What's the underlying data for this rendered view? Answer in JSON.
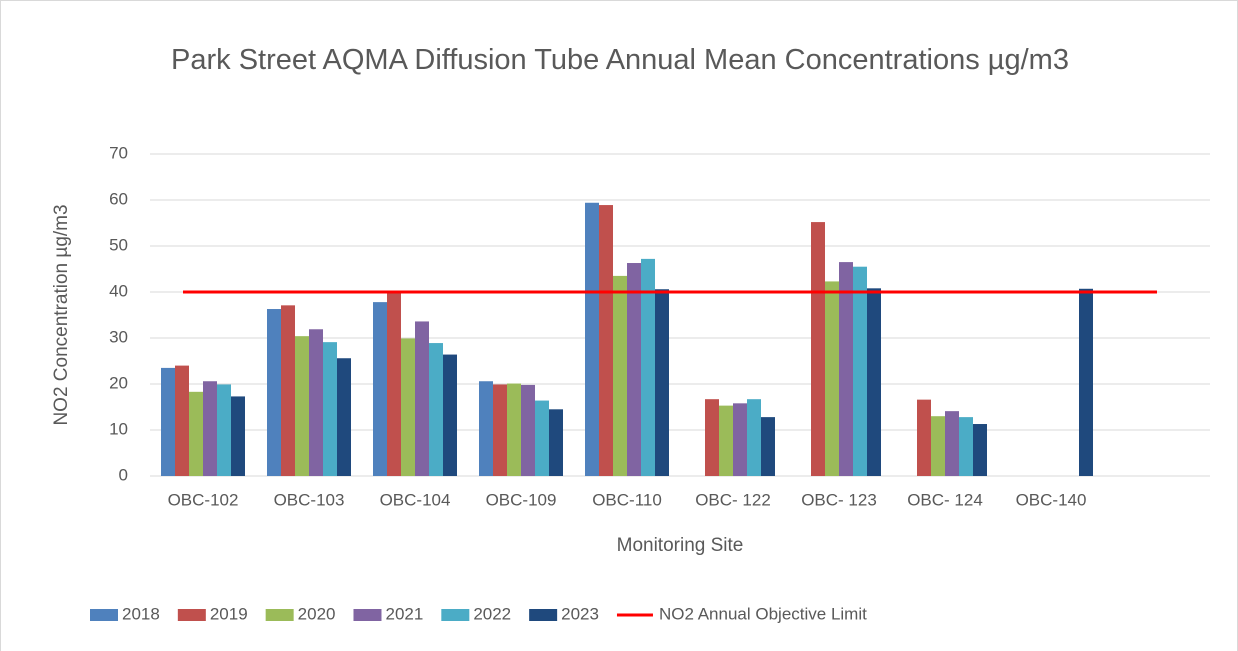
{
  "chart_data": {
    "type": "bar",
    "title": "Park Street AQMA Diffusion Tube Annual Mean Concentrations µg/m3",
    "x_label": "Monitoring Site",
    "y_label": "NO2 Concentration µg/m3",
    "categories": [
      "OBC-102",
      "OBC-103",
      "OBC-104",
      "OBC-109",
      "OBC-110",
      "OBC- 122",
      "OBC- 123",
      "OBC- 124",
      "OBC-140",
      null
    ],
    "series": [
      {
        "name": "2018",
        "color": "#4f81bd",
        "values": [
          23.5,
          36.3,
          37.8,
          20.6,
          59.4,
          null,
          null,
          null,
          null,
          null
        ]
      },
      {
        "name": "2019",
        "color": "#c0504d",
        "values": [
          24.0,
          37.1,
          40.0,
          19.9,
          58.9,
          16.7,
          55.2,
          16.6,
          null,
          null
        ]
      },
      {
        "name": "2020",
        "color": "#9bbb59",
        "values": [
          18.3,
          30.4,
          29.9,
          20.1,
          43.5,
          15.3,
          42.3,
          13.0,
          null,
          null
        ]
      },
      {
        "name": "2021",
        "color": "#8064a2",
        "values": [
          20.6,
          31.9,
          33.6,
          19.8,
          46.3,
          15.8,
          46.5,
          14.1,
          null,
          null
        ]
      },
      {
        "name": "2022",
        "color": "#4bacc6",
        "values": [
          19.9,
          29.1,
          28.9,
          16.4,
          47.2,
          16.7,
          45.5,
          12.8,
          null,
          null
        ]
      },
      {
        "name": "2023",
        "color": "#1f497d",
        "values": [
          17.3,
          25.6,
          26.4,
          14.5,
          40.6,
          12.8,
          40.8,
          11.3,
          40.7,
          null
        ]
      },
      {
        "name": "NO2 Annual Objective Limit",
        "type": "line",
        "color": "#ff0000",
        "values": [
          40,
          40,
          40,
          40,
          40,
          40,
          40,
          40,
          40,
          40
        ]
      }
    ],
    "ylim": [
      0,
      70
    ],
    "yticks": [
      0,
      10,
      20,
      30,
      40,
      50,
      60,
      70
    ],
    "grid": true,
    "legend": "bottom"
  }
}
